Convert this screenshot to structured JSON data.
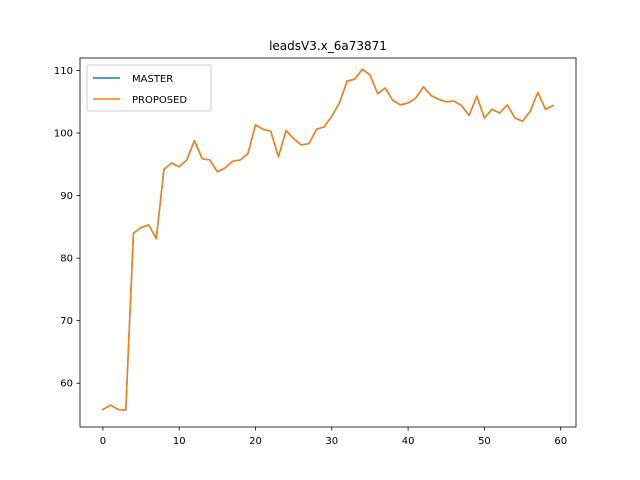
{
  "chart_data": {
    "type": "line",
    "title": "leadsV3.x_6a73871",
    "xlabel": "",
    "ylabel": "",
    "xlim": [
      -3,
      62
    ],
    "ylim": [
      53,
      112
    ],
    "xticks": [
      0,
      10,
      20,
      30,
      40,
      50,
      60
    ],
    "yticks": [
      60,
      70,
      80,
      90,
      100,
      110
    ],
    "grid": false,
    "legend_position": "top-left",
    "x": [
      0,
      1,
      2,
      3,
      4,
      5,
      6,
      7,
      8,
      9,
      10,
      11,
      12,
      13,
      14,
      15,
      16,
      17,
      18,
      19,
      20,
      21,
      22,
      23,
      24,
      25,
      26,
      27,
      28,
      29,
      30,
      31,
      32,
      33,
      34,
      35,
      36,
      37,
      38,
      39,
      40,
      41,
      42,
      43,
      44,
      45,
      46,
      47,
      48,
      49,
      50,
      51,
      52,
      53,
      54,
      55,
      56,
      57,
      58,
      59
    ],
    "series": [
      {
        "name": "MASTER",
        "color": "#1f77b4",
        "values": [
          55.8,
          56.5,
          55.8,
          55.7,
          84.0,
          84.9,
          85.3,
          83.1,
          94.2,
          95.2,
          94.6,
          95.7,
          98.8,
          95.9,
          95.7,
          93.8,
          94.4,
          95.5,
          95.7,
          96.7,
          101.3,
          100.6,
          100.3,
          96.2,
          100.4,
          99.1,
          98.1,
          98.3,
          100.6,
          101.0,
          102.7,
          104.8,
          108.3,
          108.6,
          110.2,
          109.3,
          106.3,
          107.2,
          105.2,
          104.5,
          104.8,
          105.6,
          107.4,
          106.0,
          105.4,
          105.0,
          105.1,
          104.4,
          102.8,
          105.9,
          102.4,
          103.8,
          103.2,
          104.5,
          102.4,
          101.9,
          103.5,
          106.5,
          103.8,
          104.4
        ]
      },
      {
        "name": "PROPOSED",
        "color": "#ff7f0e",
        "values": [
          55.8,
          56.5,
          55.8,
          55.7,
          84.0,
          84.9,
          85.3,
          83.1,
          94.2,
          95.2,
          94.6,
          95.7,
          98.8,
          95.9,
          95.7,
          93.8,
          94.4,
          95.5,
          95.7,
          96.7,
          101.3,
          100.6,
          100.3,
          96.2,
          100.4,
          99.1,
          98.1,
          98.3,
          100.6,
          101.0,
          102.7,
          104.8,
          108.3,
          108.6,
          110.2,
          109.3,
          106.3,
          107.2,
          105.2,
          104.5,
          104.8,
          105.6,
          107.4,
          106.0,
          105.4,
          105.0,
          105.1,
          104.4,
          102.8,
          105.9,
          102.4,
          103.8,
          103.2,
          104.5,
          102.4,
          101.9,
          103.5,
          106.5,
          103.8,
          104.4
        ]
      }
    ]
  }
}
